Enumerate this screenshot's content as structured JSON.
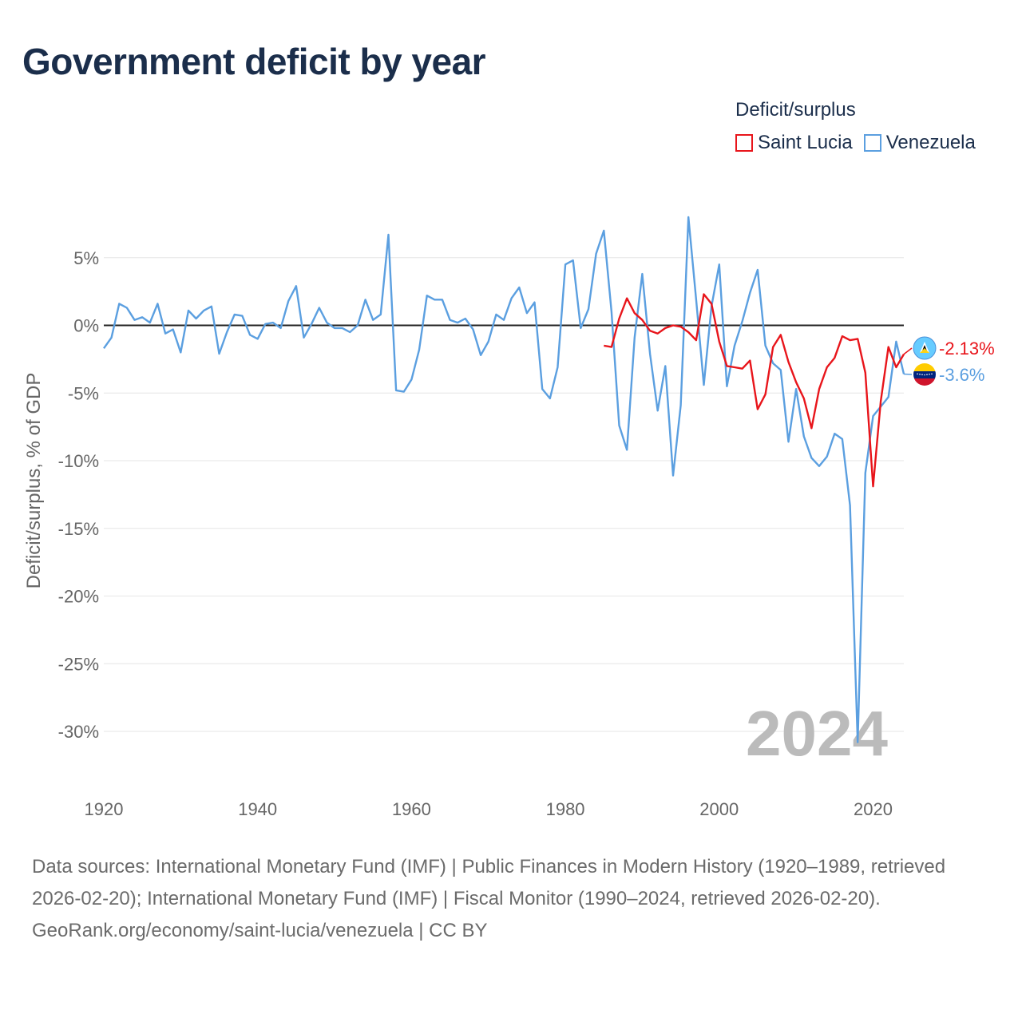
{
  "title": "Government deficit by year",
  "legend": {
    "title": "Deficit/surplus",
    "items": [
      {
        "label": "Saint Lucia",
        "color": "#e8151b"
      },
      {
        "label": "Venezuela",
        "color": "#5b9fe0"
      }
    ]
  },
  "footer": {
    "sources": "Data sources: International Monetary Fund (IMF) | Public Finances in Modern History (1920–1989, retrieved 2026-02-20); International Monetary Fund (IMF) | Fiscal Monitor (1990–2024, retrieved 2026-02-20).",
    "attribution": "GeoRank.org/economy/saint-lucia/venezuela | CC BY"
  },
  "chart_data": {
    "type": "line",
    "title": "Government deficit by year",
    "xlabel": "",
    "ylabel": "Deficit/surplus, % of GDP",
    "xlim": [
      1920,
      2024
    ],
    "ylim": [
      -33,
      9
    ],
    "x_ticks": [
      1920,
      1940,
      1960,
      1980,
      2000,
      2020
    ],
    "y_ticks": [
      5,
      0,
      -5,
      -10,
      -15,
      -20,
      -25,
      -30
    ],
    "y_tick_labels": [
      "5%",
      "0%",
      "-5%",
      "-10%",
      "-15%",
      "-20%",
      "-25%",
      "-30%"
    ],
    "year_watermark": "2024",
    "series": [
      {
        "name": "Saint Lucia",
        "color": "#e8151b",
        "end_label": "-2.13%",
        "x": [
          1985,
          1986,
          1987,
          1988,
          1989,
          1990,
          1991,
          1992,
          1993,
          1994,
          1995,
          1996,
          1997,
          1998,
          1999,
          2000,
          2001,
          2002,
          2003,
          2004,
          2005,
          2006,
          2007,
          2008,
          2009,
          2010,
          2011,
          2012,
          2013,
          2014,
          2015,
          2016,
          2017,
          2018,
          2019,
          2020,
          2021,
          2022,
          2023,
          2024
        ],
        "values": [
          -1.5,
          -1.6,
          0.5,
          2.0,
          0.9,
          0.4,
          -0.4,
          -0.6,
          -0.2,
          0.0,
          -0.1,
          -0.5,
          -1.1,
          2.3,
          1.6,
          -1.2,
          -3.0,
          -3.1,
          -3.2,
          -2.6,
          -6.2,
          -5.1,
          -1.6,
          -0.7,
          -2.7,
          -4.2,
          -5.4,
          -7.6,
          -4.7,
          -3.1,
          -2.4,
          -0.8,
          -1.1,
          -1.0,
          -3.5,
          -11.9,
          -5.6,
          -1.6,
          -3.1,
          -2.13
        ]
      },
      {
        "name": "Venezuela",
        "color": "#5b9fe0",
        "end_label": "-3.6%",
        "x": [
          1920,
          1921,
          1922,
          1923,
          1924,
          1925,
          1926,
          1927,
          1928,
          1929,
          1930,
          1931,
          1932,
          1933,
          1934,
          1935,
          1936,
          1937,
          1938,
          1939,
          1940,
          1941,
          1942,
          1943,
          1944,
          1945,
          1946,
          1947,
          1948,
          1949,
          1950,
          1951,
          1952,
          1953,
          1954,
          1955,
          1956,
          1957,
          1958,
          1959,
          1960,
          1961,
          1962,
          1963,
          1964,
          1965,
          1966,
          1967,
          1968,
          1969,
          1970,
          1971,
          1972,
          1973,
          1974,
          1975,
          1976,
          1977,
          1978,
          1979,
          1980,
          1981,
          1982,
          1983,
          1984,
          1985,
          1986,
          1987,
          1988,
          1989,
          1990,
          1991,
          1992,
          1993,
          1994,
          1995,
          1996,
          1997,
          1998,
          1999,
          2000,
          2001,
          2002,
          2003,
          2004,
          2005,
          2006,
          2007,
          2008,
          2009,
          2010,
          2011,
          2012,
          2013,
          2014,
          2015,
          2016,
          2017,
          2018,
          2019,
          2020,
          2021,
          2022,
          2023,
          2024
        ],
        "values": [
          -1.7,
          -0.9,
          1.6,
          1.3,
          0.4,
          0.6,
          0.2,
          1.6,
          -0.6,
          -0.3,
          -2.0,
          1.1,
          0.5,
          1.1,
          1.4,
          -2.1,
          -0.5,
          0.8,
          0.7,
          -0.7,
          -1.0,
          0.1,
          0.2,
          -0.2,
          1.8,
          2.9,
          -0.9,
          0.1,
          1.3,
          0.2,
          -0.2,
          -0.2,
          -0.5,
          0.0,
          1.9,
          0.4,
          0.8,
          6.7,
          -4.8,
          -4.9,
          -4.0,
          -1.8,
          2.2,
          1.9,
          1.9,
          0.4,
          0.2,
          0.5,
          -0.3,
          -2.2,
          -1.2,
          0.8,
          0.4,
          2.0,
          2.8,
          0.9,
          1.7,
          -4.7,
          -5.4,
          -3.1,
          4.5,
          4.8,
          -0.2,
          1.2,
          5.3,
          7.0,
          1.0,
          -7.4,
          -9.2,
          -0.9,
          3.8,
          -2.1,
          -6.3,
          -3.0,
          -11.1,
          -5.9,
          8.0,
          1.9,
          -4.4,
          1.4,
          4.5,
          -4.5,
          -1.5,
          0.3,
          2.4,
          4.1,
          -1.5,
          -2.8,
          -3.3,
          -8.6,
          -4.7,
          -8.2,
          -9.8,
          -10.4,
          -9.7,
          -8.0,
          -8.4,
          -13.3,
          -30.8,
          -10.9,
          -6.7,
          -6.0,
          -5.3,
          -1.2,
          -3.6
        ]
      }
    ]
  }
}
